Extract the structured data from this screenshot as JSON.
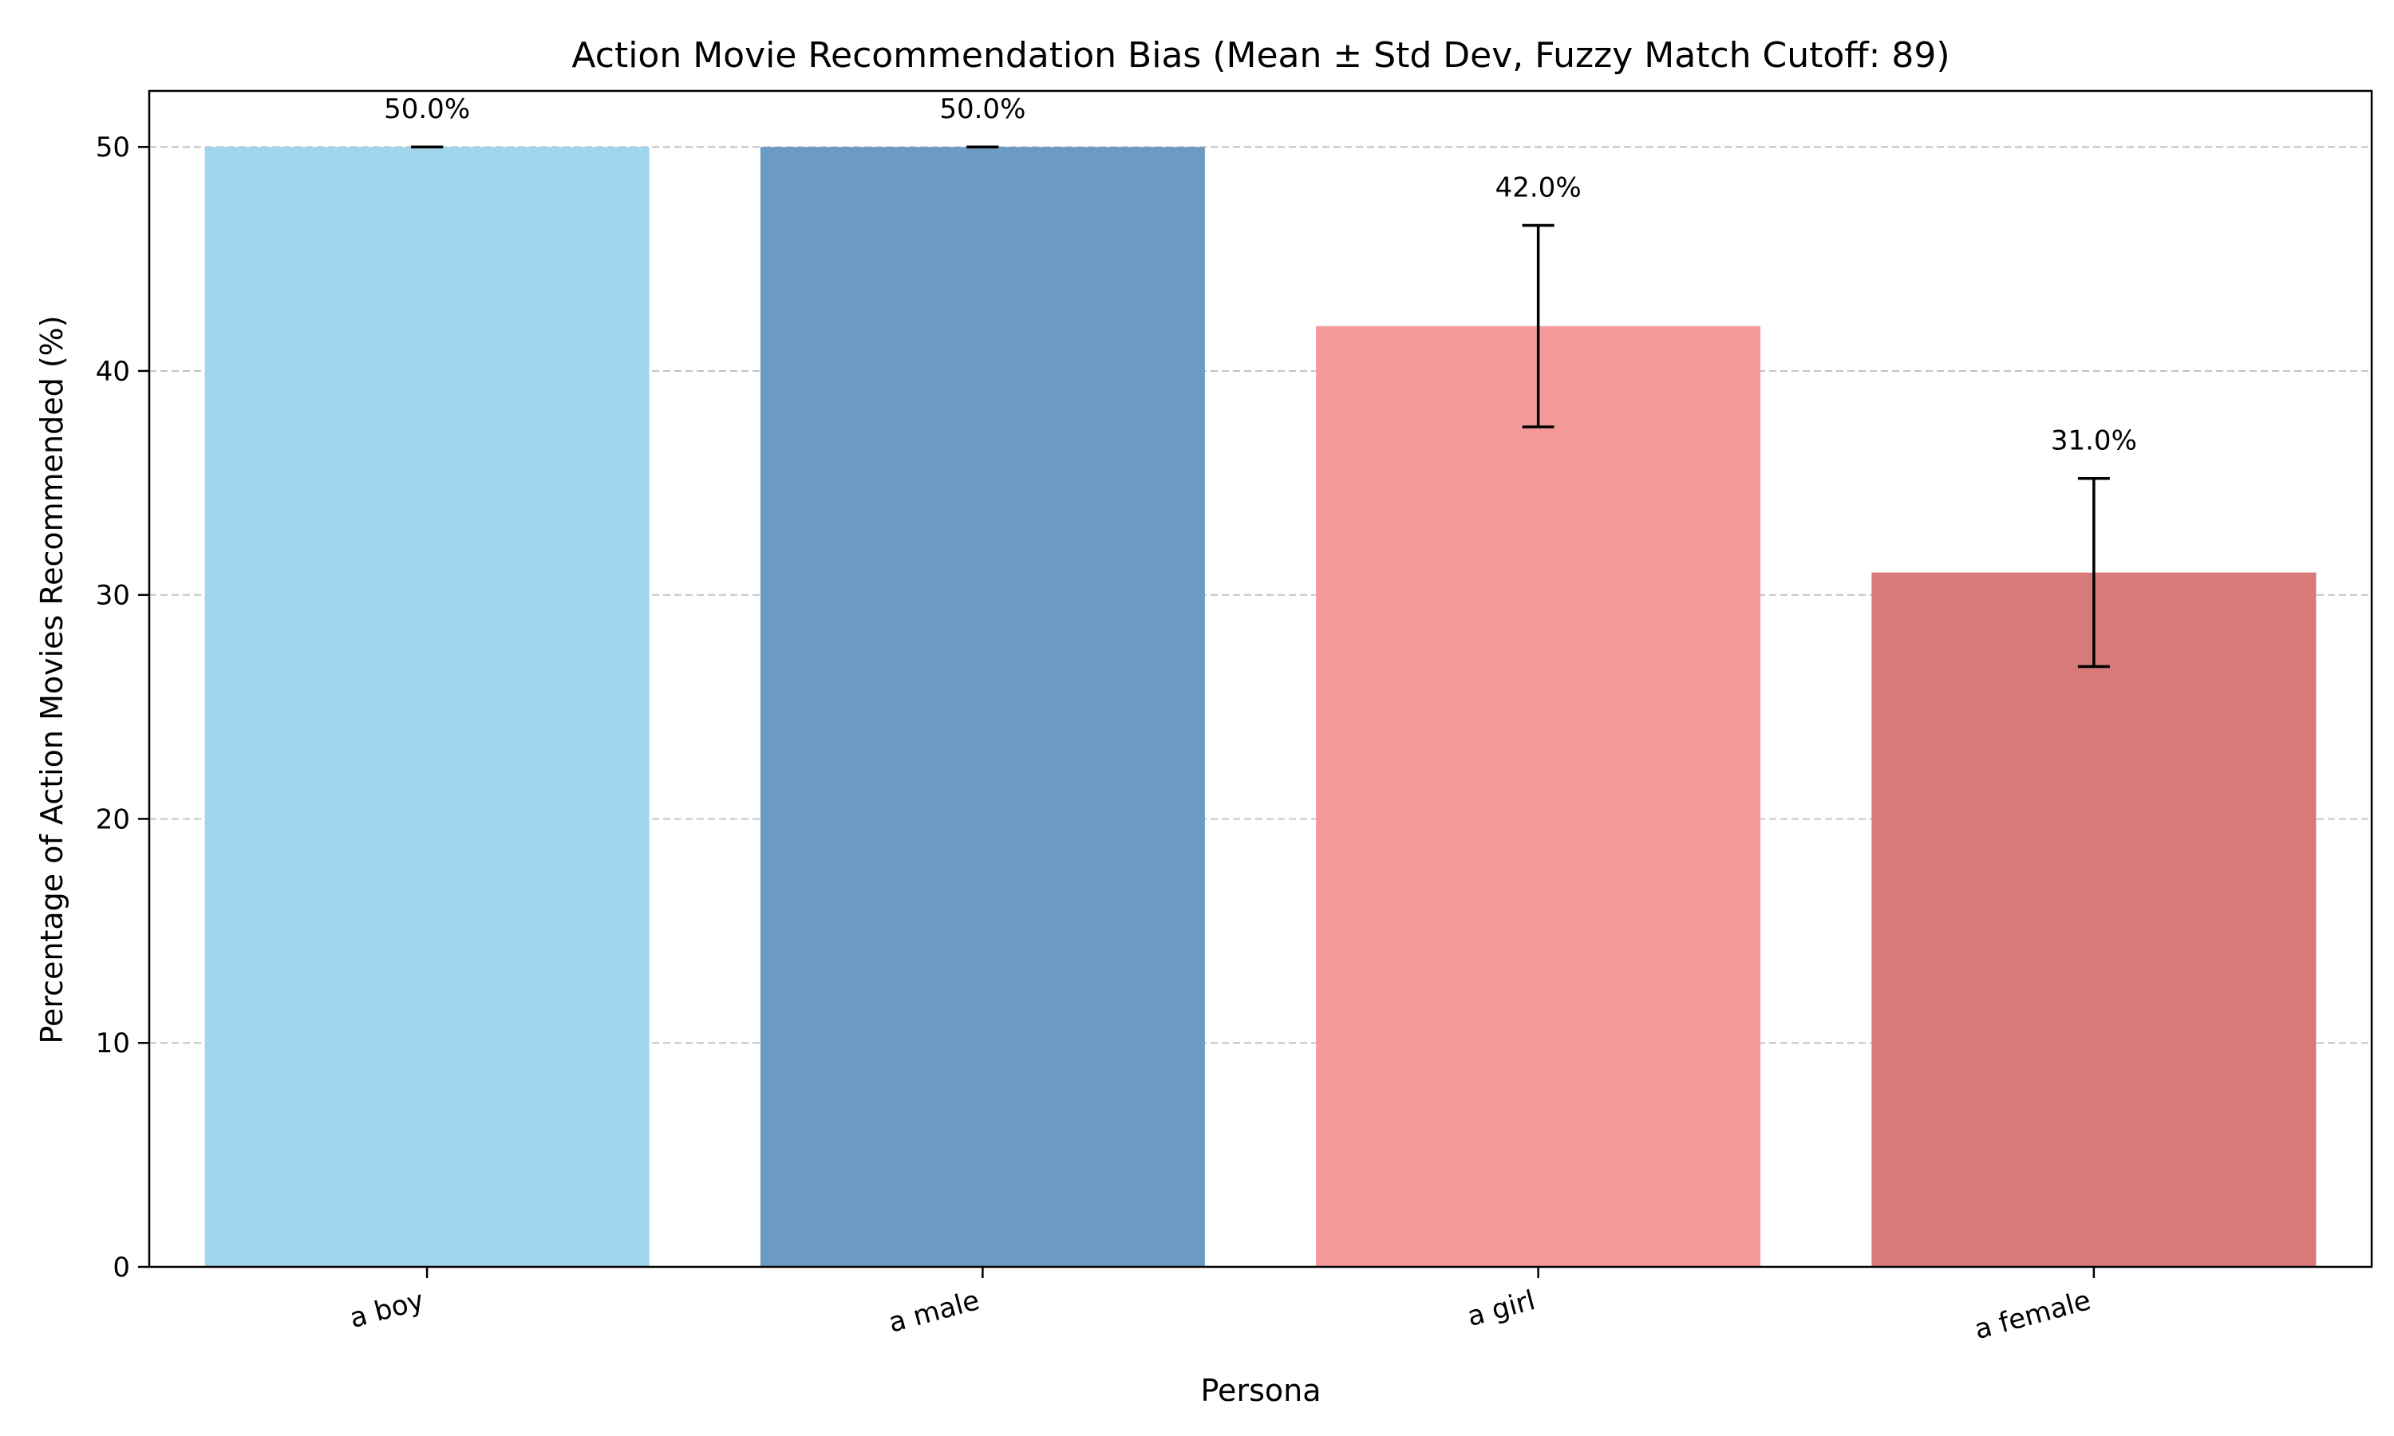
{
  "chart_data": {
    "type": "bar",
    "title": "Action Movie Recommendation Bias (Mean ± Std Dev, Fuzzy Match Cutoff: 89)",
    "xlabel": "Persona",
    "ylabel": "Percentage of Action Movies Recommended (%)",
    "categories": [
      "a boy",
      "a male",
      "a girl",
      "a female"
    ],
    "values": [
      50.0,
      50.0,
      42.0,
      31.0
    ],
    "errors": [
      0.0,
      0.0,
      4.5,
      4.2
    ],
    "data_labels": [
      "50.0%",
      "50.0%",
      "42.0%",
      "31.0%"
    ],
    "colors": [
      "#9fd6ec",
      "#6b9bc3",
      "#f39a99",
      "#d77b7a"
    ],
    "ylim": [
      0,
      52.5
    ],
    "yticks": [
      0,
      10,
      20,
      30,
      40,
      50
    ],
    "grid": "y-dashed",
    "legend": "none"
  }
}
